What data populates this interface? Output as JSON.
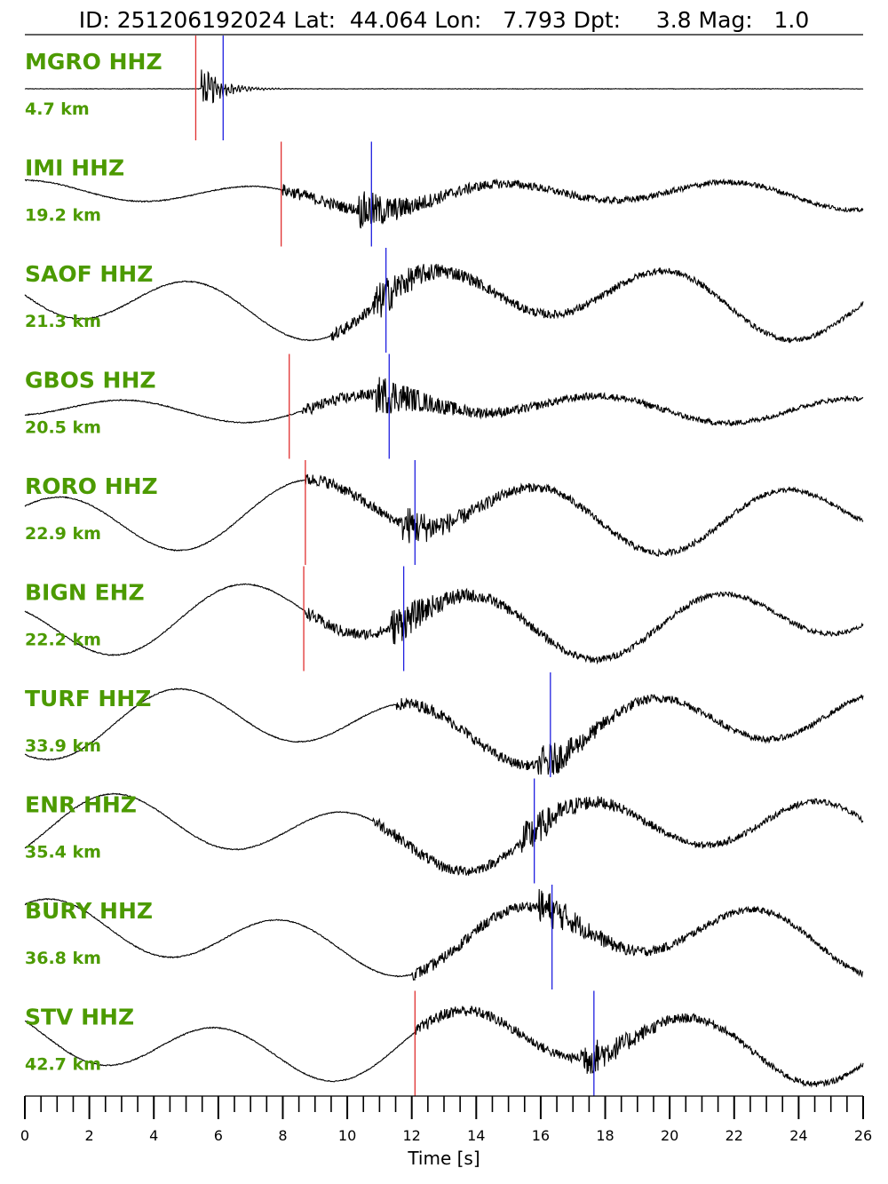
{
  "header": {
    "title": "ID: 251206192024 Lat:  44.064 Lon:   7.793 Dpt:     3.8 Mag:   1.0"
  },
  "chart_data": {
    "type": "line",
    "title": "ID: 251206192024 Lat:  44.064 Lon:   7.793 Dpt:     3.8 Mag:   1.0",
    "xlabel": "Time [s]",
    "xlim": [
      0,
      26
    ],
    "x_ticks": [
      "0",
      "2",
      "4",
      "6",
      "8",
      "10",
      "12",
      "14",
      "16",
      "18",
      "20",
      "22",
      "24",
      "26"
    ],
    "x_minor_step": 0.5,
    "colors": {
      "trace": "#000000",
      "p_pick": "#e03030",
      "s_pick": "#2020e0",
      "label": "#4c9a00"
    },
    "stations": [
      {
        "name": "MGRO HHZ",
        "distance": "4.7 km",
        "p_pick": 5.3,
        "s_pick": 6.15,
        "onset": 5.45,
        "shape": "impulsive"
      },
      {
        "name": "IMI HHZ",
        "distance": "19.2 km",
        "p_pick": 7.95,
        "s_pick": 10.75,
        "onset": 8.0,
        "shape": "noisy"
      },
      {
        "name": "SAOF HHZ",
        "distance": "21.3 km",
        "p_pick": null,
        "s_pick": 11.2,
        "onset": 9.5,
        "shape": "longperiod"
      },
      {
        "name": "GBOS HHZ",
        "distance": "20.5 km",
        "p_pick": 8.2,
        "s_pick": 11.3,
        "onset": 8.6,
        "shape": "noisy"
      },
      {
        "name": "RORO HHZ",
        "distance": "22.9 km",
        "p_pick": 8.7,
        "s_pick": 12.1,
        "onset": 8.7,
        "shape": "wave"
      },
      {
        "name": "BIGN EHZ",
        "distance": "22.2 km",
        "p_pick": 8.65,
        "s_pick": 11.75,
        "onset": 8.7,
        "shape": "wave"
      },
      {
        "name": "TURF HHZ",
        "distance": "33.9 km",
        "p_pick": null,
        "s_pick": 16.3,
        "onset": 11.5,
        "shape": "wave"
      },
      {
        "name": "ENR HHZ",
        "distance": "35.4 km",
        "p_pick": null,
        "s_pick": 15.8,
        "onset": 10.8,
        "shape": "wave"
      },
      {
        "name": "BURY HHZ",
        "distance": "36.8 km",
        "p_pick": null,
        "s_pick": 16.35,
        "onset": 12.0,
        "shape": "wave"
      },
      {
        "name": "STV HHZ",
        "distance": "42.7 km",
        "p_pick": 12.1,
        "s_pick": 17.65,
        "onset": 12.1,
        "shape": "wave"
      }
    ]
  }
}
